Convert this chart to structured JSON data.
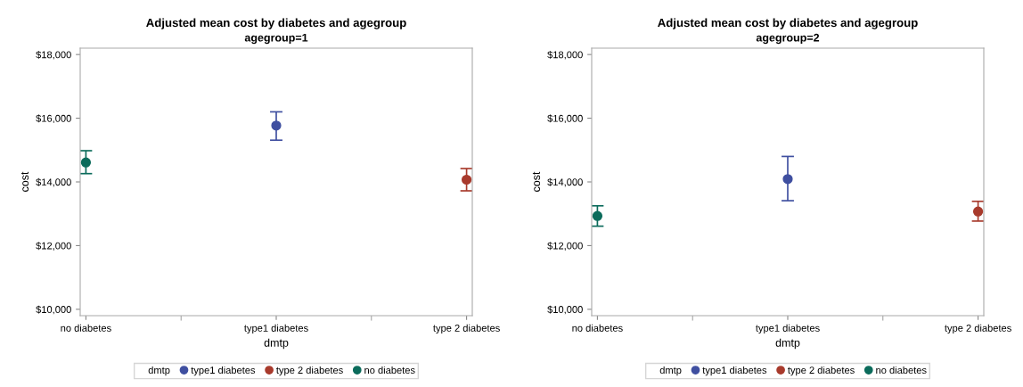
{
  "chart_data": [
    {
      "type": "scatter",
      "title": "Adjusted mean cost by diabetes and agegroup",
      "subtitle": "agegroup=1",
      "xlabel": "dmtp",
      "ylabel": "cost",
      "legend_title": "dmtp",
      "legend": "bottom",
      "marker": "circle",
      "grid": false,
      "categories": [
        "no diabetes",
        "type1 diabetes",
        "type 2 diabetes"
      ],
      "ylim": [
        9800,
        18200
      ],
      "yticks": [
        {
          "value": 10000,
          "label": "$10,000"
        },
        {
          "value": 12000,
          "label": "$12,000"
        },
        {
          "value": 14000,
          "label": "$14,000"
        },
        {
          "value": 16000,
          "label": "$16,000"
        },
        {
          "value": 18000,
          "label": "$18,000"
        }
      ],
      "series": [
        {
          "name": "type1 diabetes",
          "color": "#3f4fa0",
          "values": [
            null,
            15770,
            null
          ],
          "errors": [
            null,
            [
              15310,
              16200
            ],
            null
          ]
        },
        {
          "name": "type 2 diabetes",
          "color": "#a83a2c",
          "values": [
            null,
            null,
            14070
          ],
          "errors": [
            null,
            null,
            [
              13720,
              14420
            ]
          ]
        },
        {
          "name": "no diabetes",
          "color": "#0b6b5b",
          "values": [
            14610,
            null,
            null
          ],
          "errors": [
            [
              14260,
              14980
            ],
            null,
            null
          ]
        }
      ]
    },
    {
      "type": "scatter",
      "title": "Adjusted mean cost by diabetes and agegroup",
      "subtitle": "agegroup=2",
      "xlabel": "dmtp",
      "ylabel": "cost",
      "legend_title": "dmtp",
      "legend": "bottom",
      "marker": "circle",
      "grid": false,
      "categories": [
        "no diabetes",
        "type1 diabetes",
        "type 2 diabetes"
      ],
      "ylim": [
        9800,
        18200
      ],
      "yticks": [
        {
          "value": 10000,
          "label": "$10,000"
        },
        {
          "value": 12000,
          "label": "$12,000"
        },
        {
          "value": 14000,
          "label": "$14,000"
        },
        {
          "value": 16000,
          "label": "$16,000"
        },
        {
          "value": 18000,
          "label": "$18,000"
        }
      ],
      "series": [
        {
          "name": "type1 diabetes",
          "color": "#3f4fa0",
          "values": [
            null,
            14090,
            null
          ],
          "errors": [
            null,
            [
              13410,
              14800
            ],
            null
          ]
        },
        {
          "name": "type 2 diabetes",
          "color": "#a83a2c",
          "values": [
            null,
            null,
            13070
          ],
          "errors": [
            null,
            null,
            [
              12770,
              13390
            ]
          ]
        },
        {
          "name": "no diabetes",
          "color": "#0b6b5b",
          "values": [
            12930,
            null,
            null
          ],
          "errors": [
            [
              12610,
              13250
            ],
            null,
            null
          ]
        }
      ]
    }
  ]
}
